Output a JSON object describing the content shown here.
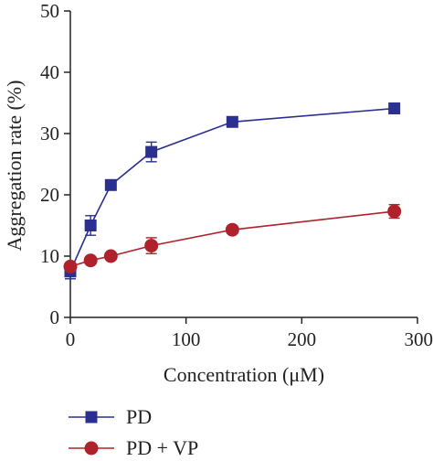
{
  "chart_data": {
    "type": "line",
    "title": "",
    "xlabel": "Concentration (μM)",
    "ylabel": "Aggregation rate (%)",
    "xlim": [
      0,
      300
    ],
    "ylim": [
      0,
      50
    ],
    "x_ticks": [
      "0",
      "100",
      "200",
      "300"
    ],
    "y_ticks": [
      "0",
      "10",
      "20",
      "30",
      "40",
      "50"
    ],
    "grid": false,
    "legend_position": "bottom-left",
    "series": [
      {
        "name": "PD",
        "color": "#2b2f8f",
        "marker": "square",
        "x": [
          0,
          17.5,
          35,
          70,
          140,
          280
        ],
        "y": [
          7.5,
          15.0,
          21.6,
          27.0,
          31.9,
          34.1
        ],
        "err": [
          1.2,
          1.6,
          0.6,
          1.6,
          0.5,
          0.5
        ]
      },
      {
        "name": "PD + VP",
        "color": "#b0222b",
        "marker": "circle",
        "x": [
          0,
          17.5,
          35,
          70,
          140,
          280
        ],
        "y": [
          8.3,
          9.3,
          10.0,
          11.7,
          14.3,
          17.3
        ],
        "err": [
          0.6,
          0.5,
          0.5,
          1.3,
          0.6,
          1.1
        ]
      }
    ]
  }
}
